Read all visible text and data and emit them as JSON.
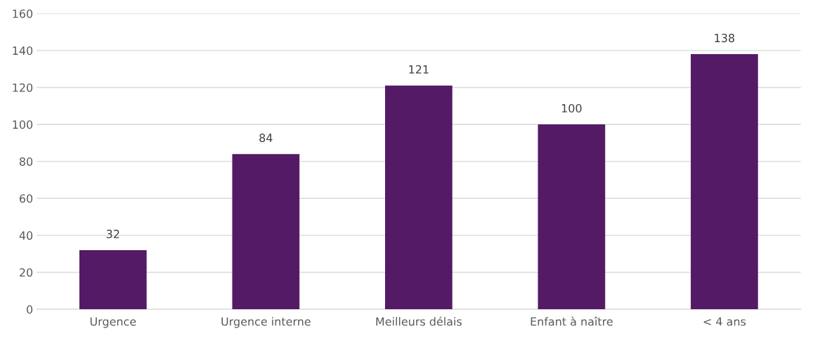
{
  "chart_data": {
    "type": "bar",
    "categories": [
      "Urgence",
      "Urgence interne",
      "Meilleurs délais",
      "Enfant à naître",
      "< 4 ans"
    ],
    "values": [
      32,
      84,
      121,
      100,
      138
    ],
    "color": "#541a66",
    "ylim": [
      0,
      160
    ],
    "yticks": [
      0,
      20,
      40,
      60,
      80,
      100,
      120,
      140,
      160
    ],
    "grid": "y",
    "data_labels": true
  }
}
